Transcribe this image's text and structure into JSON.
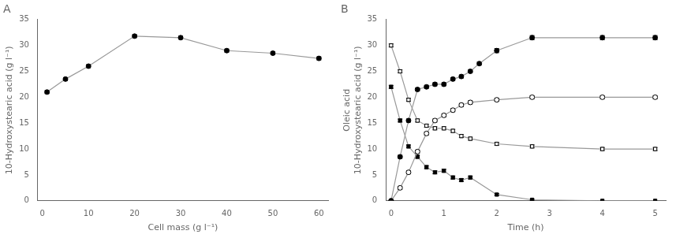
{
  "chart_data": [
    {
      "type": "line",
      "title": "A",
      "xlabel": "Cell mass (g l⁻¹)",
      "ylabel": "10-Hydroxystearic acid (g l⁻¹)",
      "xlim": [
        -1,
        62
      ],
      "ylim": [
        0,
        35
      ],
      "xticks": [
        0,
        10,
        20,
        30,
        40,
        50,
        60
      ],
      "yticks": [
        0,
        5,
        10,
        15,
        20,
        25,
        30,
        35
      ],
      "grid": false,
      "series": [
        {
          "x": [
            1,
            5,
            10,
            20,
            30,
            40,
            50,
            60
          ],
          "values": [
            21.0,
            23.5,
            26.0,
            31.8,
            31.5,
            29.0,
            28.5,
            27.5
          ],
          "errors": [
            0.3,
            0.3,
            0.3,
            0.3,
            0.3,
            0.3,
            0.3,
            0.3
          ],
          "color": "#999999",
          "marker": "circle"
        }
      ]
    },
    {
      "type": "line",
      "title": "B",
      "xlabel": "Time (h)",
      "ylabel": [
        "Oleic acid",
        "10-Hydroxystearic acid (g l⁻¹)"
      ],
      "xlim": [
        -0.1,
        5.2
      ],
      "ylim": [
        0,
        35
      ],
      "xticks": [
        0,
        1,
        2,
        3,
        4,
        5
      ],
      "yticks": [
        0,
        5,
        10,
        15,
        20,
        25,
        30,
        35
      ],
      "grid": false,
      "series": [
        {
          "x": [
            0,
            0.17,
            0.33,
            0.5,
            0.67,
            0.83,
            1.0,
            1.17,
            1.33,
            1.5,
            1.67,
            2.0,
            2.67,
            4.0,
            5.0
          ],
          "values": [
            0,
            8.5,
            15.5,
            21.5,
            22.0,
            22.5,
            22.5,
            23.5,
            24.0,
            25.0,
            26.5,
            29.0,
            31.5,
            31.5,
            31.5
          ],
          "errors": [
            0,
            0.3,
            0.3,
            0.3,
            0.3,
            0.3,
            0.3,
            0.3,
            0.3,
            0.3,
            0.3,
            0.4,
            0.4,
            0.4,
            0.4
          ],
          "color": "#999999",
          "marker": "circle"
        },
        {
          "x": [
            0,
            0.17,
            0.33,
            0.5,
            0.67,
            0.83,
            1.0,
            1.17,
            1.33,
            1.5,
            2.0,
            2.67,
            4.0,
            5.0
          ],
          "values": [
            0,
            2.5,
            5.5,
            9.5,
            13.0,
            15.5,
            16.5,
            17.5,
            18.5,
            19.0,
            19.5,
            20.0,
            20.0,
            20.0
          ],
          "errors": [
            0,
            0.3,
            0.3,
            0.3,
            0.3,
            0.3,
            0.3,
            0.3,
            0.3,
            0.3,
            0.3,
            0.3,
            0.3,
            0.3
          ],
          "color": "#999999",
          "marker": "open_circle"
        },
        {
          "x": [
            0,
            0.17,
            0.33,
            0.5,
            0.67,
            0.83,
            1.0,
            1.17,
            1.33,
            1.5,
            2.0,
            2.67,
            4.0,
            5.0
          ],
          "values": [
            30.0,
            25.0,
            19.5,
            15.5,
            14.5,
            14.0,
            14.0,
            13.5,
            12.5,
            12.0,
            11.0,
            10.5,
            10.0,
            10.0
          ],
          "errors": [
            0.3,
            0.3,
            0.3,
            0.3,
            0.3,
            0.3,
            0.3,
            0.3,
            0.3,
            0.3,
            0.3,
            0.3,
            0.3,
            0.3
          ],
          "color": "#999999",
          "marker": "open_square"
        },
        {
          "x": [
            0,
            0.17,
            0.33,
            0.5,
            0.67,
            0.83,
            1.0,
            1.17,
            1.33,
            1.5,
            2.0,
            2.67,
            4.0,
            5.0
          ],
          "values": [
            22.0,
            15.5,
            10.5,
            8.5,
            6.5,
            5.5,
            5.8,
            4.5,
            4.0,
            4.5,
            1.2,
            0.2,
            0.0,
            0.0
          ],
          "errors": [
            0.3,
            0.3,
            0.3,
            0.3,
            0.3,
            0.3,
            0.3,
            0.3,
            0.3,
            0.3,
            0.2,
            0.1,
            0.0,
            0.0
          ],
          "color": "#999999",
          "marker": "square"
        }
      ]
    }
  ]
}
